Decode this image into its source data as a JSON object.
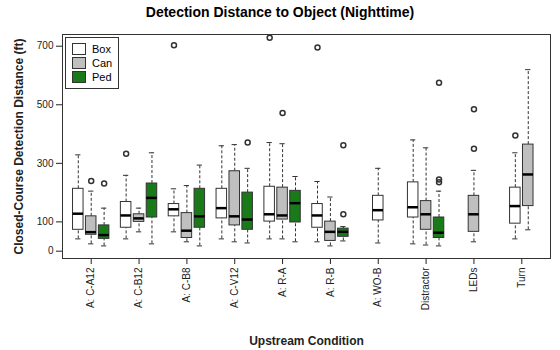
{
  "chart_data": {
    "type": "box",
    "title": "Detection Distance to Object  (Nighttime)",
    "x_label": "Upstream Condition",
    "y_label": "Closed-Course Detection Distance (ft)",
    "categories": [
      "A: C-A12",
      "A: C-B12",
      "A: C-B8",
      "A: C-V12",
      "A: R-A",
      "A: R-B",
      "A: WO-B",
      "Distractor",
      "LEDs",
      "Turn"
    ],
    "ylim": [
      -25,
      740
    ],
    "yticks": [
      0,
      100,
      300,
      500,
      700
    ],
    "grid": false,
    "legend": "top-left",
    "series": [
      {
        "name": "Box",
        "color": "#ffffff",
        "values": [
          {
            "min": 42,
            "q1": 73,
            "median": 128,
            "q3": 213,
            "max": 329,
            "outliers": []
          },
          {
            "min": 42,
            "q1": 80,
            "median": 122,
            "q3": 168,
            "max": 259,
            "outliers": [
              333
            ]
          },
          {
            "min": 66,
            "q1": 119,
            "median": 143,
            "q3": 161,
            "max": 213,
            "outliers": [
              703
            ]
          },
          {
            "min": 42,
            "q1": 112,
            "median": 147,
            "q3": 213,
            "max": 360,
            "outliers": []
          },
          {
            "min": 42,
            "q1": 101,
            "median": 126,
            "q3": 220,
            "max": 371,
            "outliers": [
              729
            ]
          },
          {
            "min": 32,
            "q1": 80,
            "median": 122,
            "q3": 161,
            "max": 238,
            "outliers": [
              696
            ]
          },
          {
            "min": 28,
            "q1": 105,
            "median": 140,
            "q3": 189,
            "max": 283,
            "outliers": []
          },
          {
            "min": 25,
            "q1": 115,
            "median": 150,
            "q3": 235,
            "max": 380,
            "outliers": []
          },
          null,
          {
            "min": 42,
            "q1": 94,
            "median": 154,
            "q3": 217,
            "max": 336,
            "outliers": [
              395
            ]
          }
        ]
      },
      {
        "name": "Can",
        "color": "#bfbfbf",
        "values": [
          {
            "min": 25,
            "q1": 56,
            "median": 65,
            "q3": 119,
            "max": 205,
            "outliers": [
              240
            ]
          },
          {
            "min": 66,
            "q1": 100,
            "median": 112,
            "q3": 126,
            "max": 147,
            "outliers": []
          },
          {
            "min": 32,
            "q1": 45,
            "median": 70,
            "q3": 130,
            "max": 224,
            "outliers": []
          },
          {
            "min": 32,
            "q1": 88,
            "median": 119,
            "q3": 273,
            "max": 364,
            "outliers": []
          },
          {
            "min": 42,
            "q1": 108,
            "median": 122,
            "q3": 217,
            "max": 367,
            "outliers": [
              472
            ]
          },
          {
            "min": 18,
            "q1": 35,
            "median": 66,
            "q3": 101,
            "max": 185,
            "outliers": []
          },
          null,
          {
            "min": 21,
            "q1": 73,
            "median": 126,
            "q3": 171,
            "max": 353,
            "outliers": []
          },
          {
            "min": 32,
            "q1": 66,
            "median": 126,
            "q3": 189,
            "max": 276,
            "outliers": [
              350,
              485
            ]
          },
          {
            "min": 73,
            "q1": 154,
            "median": 262,
            "q3": 364,
            "max": 620,
            "outliers": []
          }
        ]
      },
      {
        "name": "Ped",
        "color": "#1a7a1a",
        "values": [
          {
            "min": 18,
            "q1": 42,
            "median": 55,
            "q3": 88,
            "max": 147,
            "outliers": [
              231
            ]
          },
          {
            "min": 25,
            "q1": 115,
            "median": 182,
            "q3": 231,
            "max": 336,
            "outliers": []
          },
          {
            "min": 18,
            "q1": 80,
            "median": 119,
            "q3": 213,
            "max": 294,
            "outliers": []
          },
          {
            "min": 28,
            "q1": 73,
            "median": 108,
            "q3": 200,
            "max": 283,
            "outliers": [
              371
            ]
          },
          {
            "min": 32,
            "q1": 98,
            "median": 164,
            "q3": 206,
            "max": 255,
            "outliers": []
          },
          {
            "min": 35,
            "q1": 49,
            "median": 66,
            "q3": 77,
            "max": 84,
            "outliers": [
              126,
              362
            ]
          },
          null,
          {
            "min": 18,
            "q1": 45,
            "median": 63,
            "q3": 115,
            "max": 205,
            "outliers": [
              235,
              245,
              575
            ]
          },
          null,
          null
        ]
      }
    ]
  }
}
